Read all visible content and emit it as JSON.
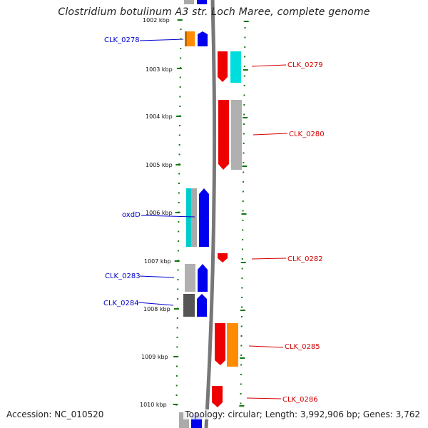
{
  "title": "Clostridium botulinum A3 str. Loch Maree, complete genome",
  "footer": {
    "accession": "Accession: NC_010520",
    "summary": "Topology: circular; Length: 3,992,906 bp; Genes: 3,762"
  },
  "colors": {
    "forward_label": "#0000cc",
    "reverse_label": "#d40000",
    "backbone": "#777777",
    "ticks": "#117711"
  },
  "scale": {
    "unit": "kbp",
    "ticks": [
      "1002 kbp",
      "1003 kbp",
      "1004 kbp",
      "1005 kbp",
      "1006 kbp",
      "1007 kbp",
      "1008 kbp",
      "1009 kbp",
      "1010 kbp"
    ],
    "tick_values_kbp": [
      1002,
      1003,
      1004,
      1005,
      1006,
      1007,
      1008,
      1009,
      1010
    ]
  },
  "genes": [
    {
      "label": "CLK_0278",
      "strand": "forward"
    },
    {
      "label": "CLK_0279",
      "strand": "reverse"
    },
    {
      "label": "CLK_0280",
      "strand": "reverse"
    },
    {
      "label": "oxdD",
      "strand": "forward"
    },
    {
      "label": "CLK_0282",
      "strand": "reverse"
    },
    {
      "label": "CLK_0283",
      "strand": "forward"
    },
    {
      "label": "CLK_0284",
      "strand": "forward"
    },
    {
      "label": "CLK_0285",
      "strand": "reverse"
    },
    {
      "label": "CLK_0286",
      "strand": "reverse"
    }
  ]
}
